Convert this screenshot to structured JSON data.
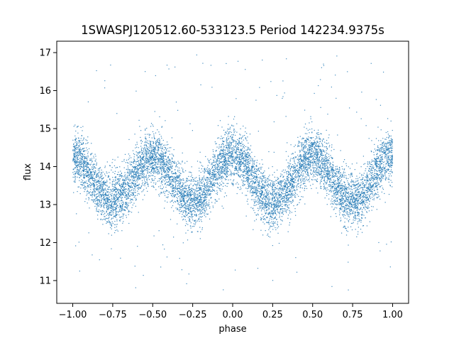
{
  "chart_data": {
    "type": "scatter",
    "title": "1SWASPJ120512.60-533123.5 Period 142234.9375s",
    "xlabel": "phase",
    "ylabel": "flux",
    "xlim": [
      -1.1,
      1.1
    ],
    "ylim": [
      10.4,
      17.3
    ],
    "xticks": [
      -1.0,
      -0.75,
      -0.5,
      -0.25,
      0.0,
      0.25,
      0.5,
      0.75,
      1.0
    ],
    "xtick_labels": [
      "−1.00",
      "−0.75",
      "−0.50",
      "−0.25",
      "0.00",
      "0.25",
      "0.50",
      "0.75",
      "1.00"
    ],
    "yticks": [
      11,
      12,
      13,
      14,
      15,
      16,
      17
    ],
    "ytick_labels": [
      "11",
      "12",
      "13",
      "14",
      "15",
      "16",
      "17"
    ],
    "grid": false,
    "point_color": "#1f77b4",
    "x_range": [
      -1.0,
      1.0
    ],
    "curve": {
      "x": [
        -1.0,
        -0.75,
        -0.5,
        -0.25,
        0.0,
        0.25,
        0.5,
        0.75,
        1.0
      ],
      "y": [
        14.25,
        13.1,
        14.25,
        13.1,
        14.3,
        13.05,
        14.25,
        13.1,
        14.3
      ]
    },
    "scatter_sigma": 0.35,
    "outlier_ylim": [
      10.7,
      17.0
    ]
  }
}
